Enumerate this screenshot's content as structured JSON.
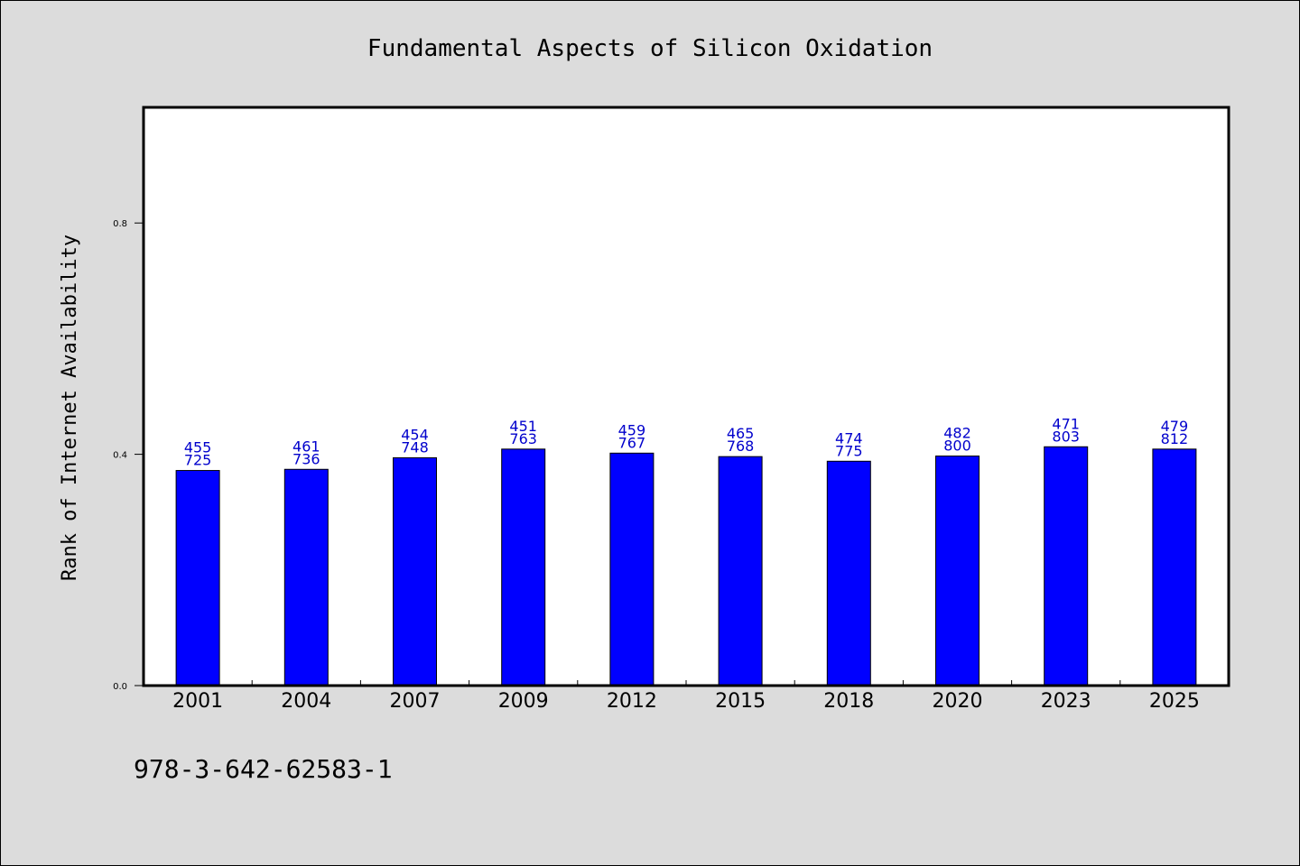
{
  "chart_data": {
    "type": "bar",
    "title": "Fundamental Aspects of Silicon Oxidation",
    "xlabel": "",
    "ylabel": "Rank of Internet Availability",
    "categories": [
      "2001",
      "2004",
      "2007",
      "2009",
      "2012",
      "2015",
      "2018",
      "2020",
      "2023",
      "2025"
    ],
    "values": [
      0.372,
      0.374,
      0.394,
      0.409,
      0.402,
      0.396,
      0.388,
      0.397,
      0.413,
      0.409
    ],
    "labels_top": [
      "455",
      "461",
      "454",
      "451",
      "459",
      "465",
      "474",
      "482",
      "471",
      "479"
    ],
    "labels_bottom": [
      "725",
      "736",
      "748",
      "763",
      "767",
      "768",
      "775",
      "800",
      "803",
      "812"
    ],
    "yticks": [
      "0.0",
      "0.4",
      "0.8"
    ],
    "ytick_values": [
      0.0,
      0.4,
      0.8
    ],
    "ylim": [
      0,
      1.0
    ],
    "grid": false,
    "bar_color": "#0000ff",
    "label_color": "#0000cc"
  },
  "footer": {
    "isbn": "978-3-642-62583-1"
  }
}
